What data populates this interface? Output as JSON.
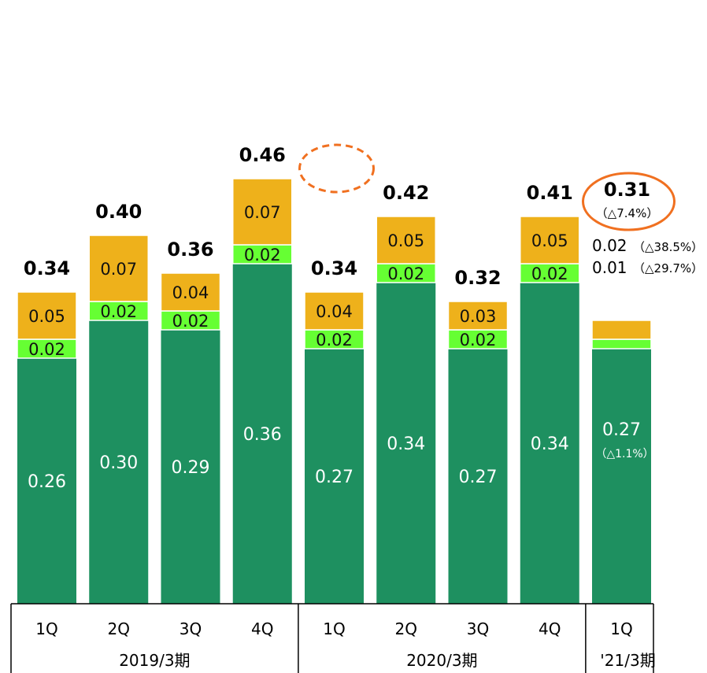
{
  "chart_data": {
    "type": "bar",
    "stacked": true,
    "categories": [
      "1Q",
      "2Q",
      "3Q",
      "4Q",
      "1Q",
      "2Q",
      "3Q",
      "4Q",
      "1Q"
    ],
    "groups": [
      {
        "label": "2019/3期",
        "count": 4
      },
      {
        "label": "2020/3期",
        "count": 4
      },
      {
        "label": "'21/3期",
        "count": 1
      }
    ],
    "series": [
      {
        "key": "base",
        "color": "#1E9060",
        "values": [
          0.26,
          0.3,
          0.29,
          0.36,
          0.27,
          0.34,
          0.27,
          0.34,
          0.27
        ]
      },
      {
        "key": "mid",
        "color": "#66FF33",
        "values": [
          0.02,
          0.02,
          0.02,
          0.02,
          0.02,
          0.02,
          0.02,
          0.02,
          0.01
        ]
      },
      {
        "key": "top",
        "color": "#EEB11B",
        "values": [
          0.05,
          0.07,
          0.04,
          0.07,
          0.04,
          0.05,
          0.03,
          0.05,
          0.02
        ]
      }
    ],
    "segment_labels": {
      "base": [
        "0.26",
        "0.30",
        "0.29",
        "0.36",
        "0.27",
        "0.34",
        "0.27",
        "0.34",
        "0.27"
      ],
      "mid": [
        "0.02",
        "0.02",
        "0.02",
        "0.02",
        "0.02",
        "0.02",
        "0.02",
        "0.02",
        "0.01"
      ],
      "top": [
        "0.05",
        "0.07",
        "0.04",
        "0.07",
        "0.04",
        "0.05",
        "0.03",
        "0.05",
        "0.02"
      ]
    },
    "totals": [
      0.34,
      0.4,
      0.36,
      0.46,
      0.34,
      0.42,
      0.32,
      0.41,
      0.31
    ],
    "total_labels": [
      "0.34",
      "0.40",
      "0.36",
      "0.46",
      "0.34",
      "0.42",
      "0.32",
      "0.41",
      "0.31"
    ],
    "annotations": {
      "total_change": "（△7.4%）",
      "base_change": "（△1.1%）",
      "mid_change": "（△29.7%）",
      "top_change": "（△38.5%）"
    },
    "highlights": [
      {
        "index": 4,
        "style": "dashed-ellipse",
        "color": "#F07020"
      },
      {
        "index": 8,
        "style": "solid-ellipse",
        "color": "#F07020"
      }
    ],
    "ylim": [
      0,
      0.5
    ],
    "grid": false,
    "title": "",
    "xlabel": "",
    "ylabel": ""
  }
}
